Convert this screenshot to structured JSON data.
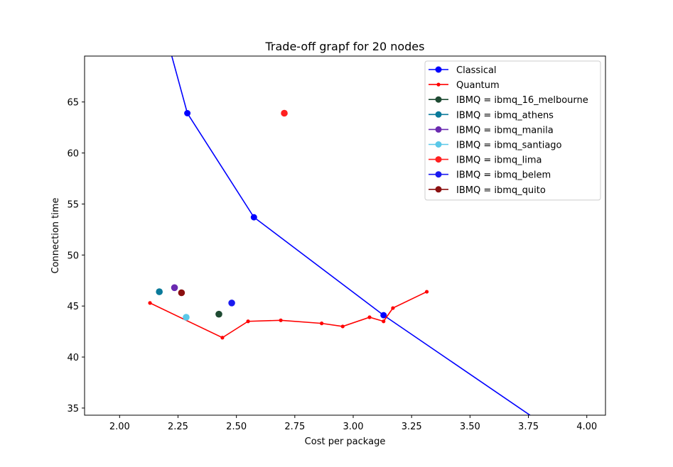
{
  "chart_data": {
    "type": "line",
    "title": "Trade-off grapf for 20 nodes",
    "xlabel": "Cost per package",
    "ylabel": "Connection time",
    "xlim": [
      1.85,
      4.08
    ],
    "ylim": [
      34.3,
      69.5
    ],
    "xticks": [
      2.0,
      2.25,
      2.5,
      2.75,
      3.0,
      3.25,
      3.5,
      3.75,
      4.0
    ],
    "xtick_labels": [
      "2.00",
      "2.25",
      "2.50",
      "2.75",
      "3.00",
      "3.25",
      "3.50",
      "3.75",
      "4.00"
    ],
    "yticks": [
      35,
      40,
      45,
      50,
      55,
      60,
      65
    ],
    "ytick_labels": [
      "35",
      "40",
      "45",
      "50",
      "55",
      "60",
      "65"
    ],
    "grid": false,
    "legend_position": "top-right",
    "series": [
      {
        "name": "Classical",
        "kind": "line",
        "color": "#0000ff",
        "marker": "circle",
        "x": [
          2.14,
          2.29,
          2.575,
          3.13,
          4.0
        ],
        "y": [
          76.5,
          63.9,
          53.7,
          44.1,
          30.5
        ],
        "show_markers": [
          false,
          true,
          true,
          true,
          false
        ]
      },
      {
        "name": "Quantum",
        "kind": "line",
        "color": "#ff0000",
        "marker": "dot",
        "x": [
          2.13,
          2.44,
          2.55,
          2.69,
          2.865,
          2.955,
          3.07,
          3.13,
          3.17,
          3.315
        ],
        "y": [
          45.3,
          41.9,
          43.5,
          43.6,
          43.3,
          43.0,
          43.9,
          43.5,
          44.8,
          46.4
        ]
      },
      {
        "name": "IBMQ = ibmq_16_melbourne",
        "kind": "point",
        "color": "#1e4a32",
        "x": [
          2.425
        ],
        "y": [
          44.2
        ]
      },
      {
        "name": "IBMQ = ibmq_athens",
        "kind": "point",
        "color": "#0a7a9a",
        "x": [
          2.17
        ],
        "y": [
          46.4
        ]
      },
      {
        "name": "IBMQ = ibmq_manila",
        "kind": "point",
        "color": "#6a2ab0",
        "x": [
          2.235
        ],
        "y": [
          46.8
        ]
      },
      {
        "name": "IBMQ = ibmq_santiago",
        "kind": "point",
        "color": "#5ac8e8",
        "x": [
          2.285
        ],
        "y": [
          43.9
        ]
      },
      {
        "name": "IBMQ = ibmq_lima",
        "kind": "point",
        "color": "#ff2020",
        "x": [
          2.705
        ],
        "y": [
          63.9
        ]
      },
      {
        "name": "IBMQ = ibmq_belem",
        "kind": "point",
        "color": "#1a1af0",
        "x": [
          2.48
        ],
        "y": [
          45.3
        ]
      },
      {
        "name": "IBMQ = ibmq_quito",
        "kind": "point",
        "color": "#8b1010",
        "x": [
          2.265
        ],
        "y": [
          46.3
        ]
      }
    ]
  }
}
